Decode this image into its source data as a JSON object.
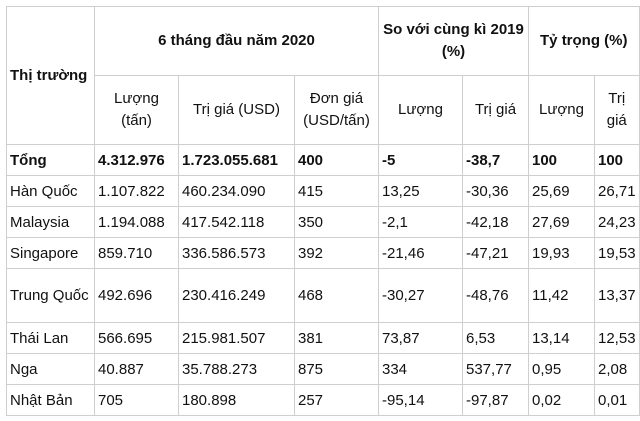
{
  "header": {
    "market": "Thị trường",
    "period": "6 tháng đầu năm 2020",
    "compare": "So với cùng kì 2019 (%)",
    "share": "Tỷ trọng (%)",
    "volume_tonnes": "Lượng (tấn)",
    "value_usd": "Trị giá (USD)",
    "unit_price": "Đơn giá (USD/tấn)",
    "compare_volume": "Lượng",
    "compare_value": "Trị giá",
    "share_volume": "Lượng",
    "share_value": "Trị giá"
  },
  "rows": [
    {
      "market": "Tổng",
      "volume": "4.312.976",
      "value": "1.723.055.681",
      "price": "400",
      "cmp_volume": "-5",
      "cmp_value": "-38,7",
      "share_volume": "100",
      "share_value": "100"
    },
    {
      "market": "Hàn Quốc",
      "volume": "1.107.822",
      "value": "460.234.090",
      "price": "415",
      "cmp_volume": "13,25",
      "cmp_value": "-30,36",
      "share_volume": "25,69",
      "share_value": "26,71"
    },
    {
      "market": "Malaysia",
      "volume": "1.194.088",
      "value": "417.542.118",
      "price": "350",
      "cmp_volume": "-2,1",
      "cmp_value": "-42,18",
      "share_volume": "27,69",
      "share_value": "24,23"
    },
    {
      "market": "Singapore",
      "volume": "859.710",
      "value": "336.586.573",
      "price": "392",
      "cmp_volume": "-21,46",
      "cmp_value": "-47,21",
      "share_volume": "19,93",
      "share_value": "19,53"
    },
    {
      "market": "Trung Quốc",
      "volume": "492.696",
      "value": "230.416.249",
      "price": "468",
      "cmp_volume": "-30,27",
      "cmp_value": "-48,76",
      "share_volume": "11,42",
      "share_value": "13,37"
    },
    {
      "market": "Thái Lan",
      "volume": "566.695",
      "value": "215.981.507",
      "price": "381",
      "cmp_volume": "73,87",
      "cmp_value": "6,53",
      "share_volume": "13,14",
      "share_value": "12,53"
    },
    {
      "market": "Nga",
      "volume": "40.887",
      "value": "35.788.273",
      "price": "875",
      "cmp_volume": "334",
      "cmp_value": "537,77",
      "share_volume": "0,95",
      "share_value": "2,08"
    },
    {
      "market": "Nhật Bản",
      "volume": "705",
      "value": "180.898",
      "price": "257",
      "cmp_volume": "-95,14",
      "cmp_value": "-97,87",
      "share_volume": "0,02",
      "share_value": "0,01"
    }
  ]
}
